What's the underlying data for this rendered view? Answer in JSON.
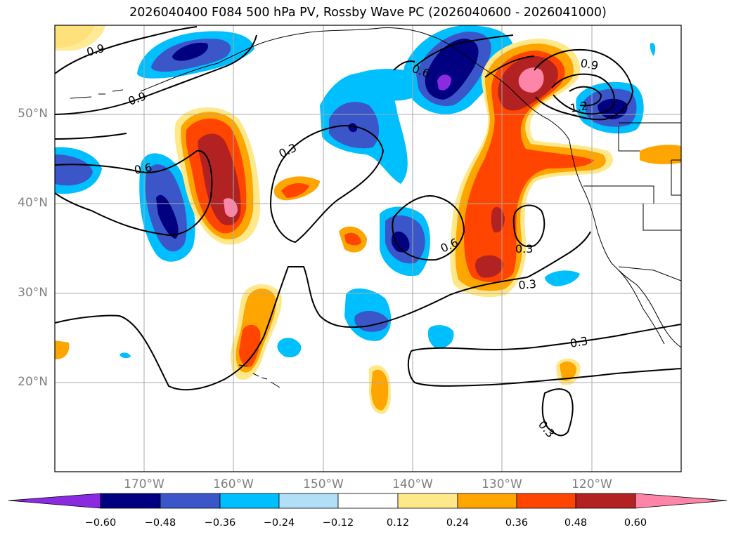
{
  "title": "2026040400 F084 500 hPa PV, Rossby Wave PC (2026040600 - 2026041000)",
  "map": {
    "lon_range": [
      -180,
      -110
    ],
    "lat_range": [
      10,
      60
    ],
    "lat_labels": [
      "50°N",
      "40°N",
      "30°N",
      "20°N"
    ],
    "lon_labels": [
      "170°W",
      "160°W",
      "150°W",
      "140°W",
      "130°W",
      "120°W"
    ],
    "contour_labels": [
      "0.9",
      "0.9",
      "0.6",
      "0.3",
      "0.6",
      "0.9",
      "1.2",
      "0.6",
      "0.3",
      "0.3",
      "0.3",
      "0.3"
    ]
  },
  "colorbar": {
    "ticks": [
      "−0.60",
      "−0.48",
      "−0.36",
      "−0.24",
      "−0.12",
      "0.12",
      "0.24",
      "0.36",
      "0.48",
      "0.60"
    ],
    "colors": [
      "#8a2be2",
      "#000080",
      "#3a56c8",
      "#00bfff",
      "#b0e0f8",
      "#ffffff",
      "#ffe88a",
      "#ffa500",
      "#ff4500",
      "#b22222",
      "#ff85a8"
    ]
  }
}
